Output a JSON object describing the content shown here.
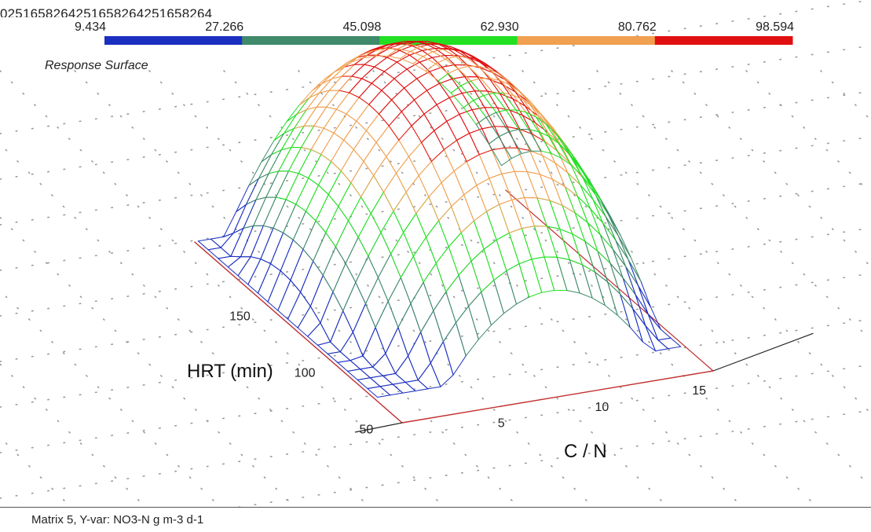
{
  "overlap_text": "0251658264251658264251658264",
  "colorbar": {
    "ticks": [
      "9.434",
      "27.266",
      "45.098",
      "62.930",
      "80.762",
      "98.594"
    ],
    "colors": [
      "#1a2fc0",
      "#3e8a6a",
      "#22e022",
      "#f0a050",
      "#e01010"
    ]
  },
  "chart_data": {
    "type": "surface",
    "title": "Response Surface",
    "xlabel": "C / N",
    "ylabel": "HRT (min)",
    "x_ticks": [
      "5",
      "10",
      "15"
    ],
    "y_ticks": [
      "50",
      "100",
      "150"
    ],
    "z_range": [
      9.434,
      98.594
    ],
    "z_levels": [
      9.434,
      27.266,
      45.098,
      62.93,
      80.762,
      98.594
    ],
    "colors": [
      "#1a2fc0",
      "#3e8a6a",
      "#22e022",
      "#f0a050",
      "#e01010"
    ],
    "grid": true
  },
  "footer": {
    "text": "Matrix 5, Y-var: NO3-N g m-3 d-1"
  }
}
